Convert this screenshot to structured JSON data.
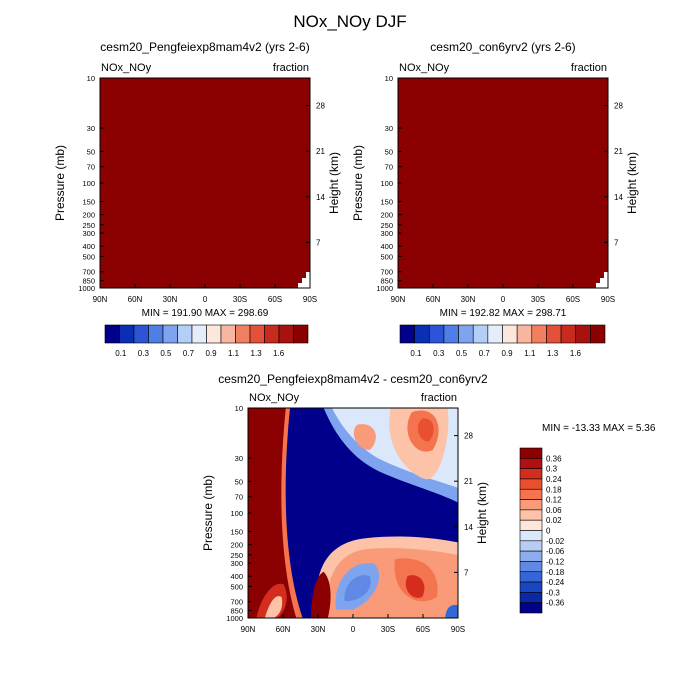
{
  "figure_title": "NOx_NOy DJF",
  "chart_data": [
    {
      "type": "heatmap",
      "panel": "top-left",
      "title": "cesm20_Pengfeiexp8mam4v2 (yrs 2-6)",
      "left_label": "NOx_NOy",
      "right_label": "fraction",
      "ylabel": "Pressure (mb)",
      "y2label": "Height (km)",
      "x_ticks": [
        "90N",
        "60N",
        "30N",
        "0",
        "30S",
        "60S",
        "90S"
      ],
      "y_ticks": [
        "10",
        "30",
        "50",
        "70",
        "100",
        "150",
        "200",
        "250",
        "300",
        "400",
        "500",
        "700",
        "850",
        "1000"
      ],
      "y2_ticks": [
        "28",
        "21",
        "14",
        "7"
      ],
      "min": 191.9,
      "max": 298.69,
      "stats_text": "MIN = 191.90   MAX = 298.69",
      "field": "saturated",
      "colorbar": {
        "orientation": "horizontal",
        "labels": [
          "0.1",
          "0.3",
          "0.5",
          "0.7",
          "0.9",
          "1.1",
          "1.3",
          "1.6"
        ],
        "colors": [
          "#00008b",
          "#0a2fb4",
          "#2b55d6",
          "#4f7ee6",
          "#7ea4f0",
          "#b3cff7",
          "#e4eefb",
          "#fde6dc",
          "#f7b6a0",
          "#f08060",
          "#e3513a",
          "#c92a1e",
          "#a8120e",
          "#8b0000"
        ]
      }
    },
    {
      "type": "heatmap",
      "panel": "top-right",
      "title": "cesm20_con6yrv2 (yrs 2-6)",
      "left_label": "NOx_NOy",
      "right_label": "fraction",
      "ylabel": "Pressure (mb)",
      "y2label": "Height (km)",
      "x_ticks": [
        "90N",
        "60N",
        "30N",
        "0",
        "30S",
        "60S",
        "90S"
      ],
      "y_ticks": [
        "10",
        "30",
        "50",
        "70",
        "100",
        "150",
        "200",
        "250",
        "300",
        "400",
        "500",
        "700",
        "850",
        "1000"
      ],
      "y2_ticks": [
        "28",
        "21",
        "14",
        "7"
      ],
      "min": 192.82,
      "max": 298.71,
      "stats_text": "MIN = 192.82   MAX = 298.71",
      "field": "saturated",
      "colorbar": {
        "orientation": "horizontal",
        "labels": [
          "0.1",
          "0.3",
          "0.5",
          "0.7",
          "0.9",
          "1.1",
          "1.3",
          "1.6"
        ],
        "colors": [
          "#00008b",
          "#0a2fb4",
          "#2b55d6",
          "#4f7ee6",
          "#7ea4f0",
          "#b3cff7",
          "#e4eefb",
          "#fde6dc",
          "#f7b6a0",
          "#f08060",
          "#e3513a",
          "#c92a1e",
          "#a8120e",
          "#8b0000"
        ]
      }
    },
    {
      "type": "heatmap",
      "panel": "bottom-difference",
      "title": "cesm20_Pengfeiexp8mam4v2 - cesm20_con6yrv2",
      "left_label": "NOx_NOy",
      "right_label": "fraction",
      "ylabel": "Pressure (mb)",
      "y2label": "Height (km)",
      "x_ticks": [
        "90N",
        "60N",
        "30N",
        "0",
        "30S",
        "60S",
        "90S"
      ],
      "y_ticks": [
        "10",
        "30",
        "50",
        "70",
        "100",
        "150",
        "200",
        "250",
        "300",
        "400",
        "500",
        "700",
        "850",
        "1000"
      ],
      "y2_ticks": [
        "28",
        "21",
        "14",
        "7"
      ],
      "min": -13.33,
      "max": 5.36,
      "stats_text": "MIN = -13.33   MAX =   5.36",
      "field": "difference",
      "colorbar": {
        "orientation": "vertical",
        "labels": [
          "0.36",
          "0.3",
          "0.24",
          "0.18",
          "0.12",
          "0.06",
          "0.02",
          "0",
          "-0.02",
          "-0.06",
          "-0.12",
          "-0.18",
          "-0.24",
          "-0.3",
          "-0.36"
        ],
        "colors": [
          "#8b0000",
          "#b21010",
          "#d42d1e",
          "#e8502f",
          "#f3744f",
          "#f99a79",
          "#fcc3a9",
          "#fee6d8",
          "#dbe8fb",
          "#b7cdf6",
          "#8cacee",
          "#5f89e4",
          "#3466d8",
          "#1a46c2",
          "#0b28a6",
          "#00008b"
        ]
      }
    }
  ]
}
